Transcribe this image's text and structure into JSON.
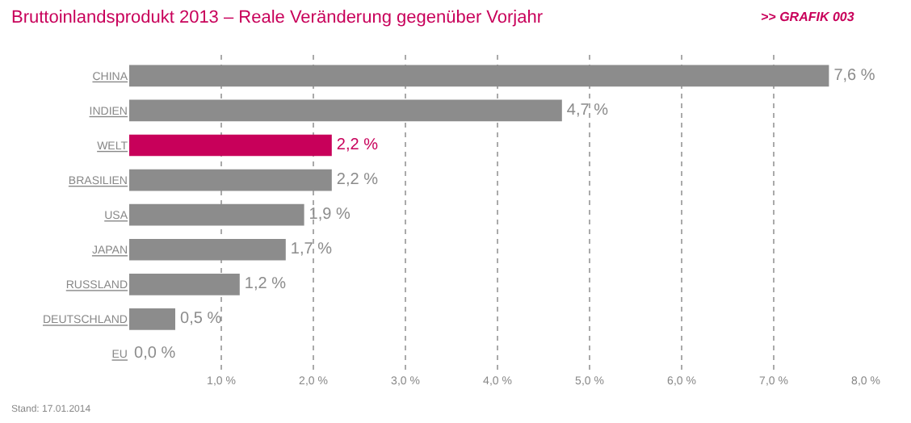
{
  "chart_data": {
    "type": "bar",
    "orientation": "horizontal",
    "title": "Bruttoinlandsprodukt 2013 – Reale Veränderung gegenüber Vorjahr",
    "subtitle": ">> GRAFIK 003",
    "categories": [
      "CHINA",
      "INDIEN",
      "WELT",
      "BRASILIEN",
      "USA",
      "JAPAN",
      "RUSSLAND",
      "DEUTSCHLAND",
      "EU"
    ],
    "values": [
      7.6,
      4.7,
      2.2,
      2.2,
      1.9,
      1.7,
      1.2,
      0.5,
      0.0
    ],
    "colors": [
      "#8c8c8c",
      "#8c8c8c",
      "#c8005a",
      "#8c8c8c",
      "#8c8c8c",
      "#8c8c8c",
      "#8c8c8c",
      "#8c8c8c",
      "#8c8c8c"
    ],
    "value_labels": [
      "7,6 %",
      "4,7 %",
      "2,2 %",
      "2,2 %",
      "1,9 %",
      "1,7 %",
      "1,2 %",
      "0,5 %",
      "0,0 %"
    ],
    "xlim": [
      0,
      8
    ],
    "xticks": [
      {
        "value": 1,
        "label": "1,0 %"
      },
      {
        "value": 2,
        "label": "2,0 %"
      },
      {
        "value": 3,
        "label": "3,0 %"
      },
      {
        "value": 4,
        "label": "4,0 %"
      },
      {
        "value": 5,
        "label": "5,0 %"
      },
      {
        "value": 6,
        "label": "6,0 %"
      },
      {
        "value": 7,
        "label": "7,0 %"
      },
      {
        "value": 8,
        "label": "8,0 %"
      }
    ],
    "grid": "x",
    "legend": false,
    "annotations": [
      "Stand: 17.01.2014"
    ]
  }
}
